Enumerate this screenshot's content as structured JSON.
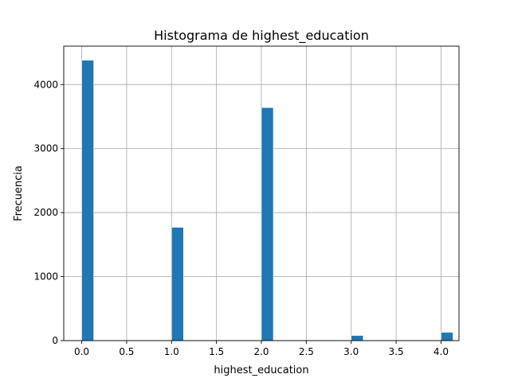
{
  "chart_data": {
    "type": "bar",
    "title": "Histograma de highest_education",
    "xlabel": "highest_education",
    "ylabel": "Frecuencia",
    "xlim": [
      -0.2,
      4.2
    ],
    "ylim": [
      0,
      4600
    ],
    "bin_width": 0.1333,
    "grid": true,
    "x_ticks": [
      0.0,
      0.5,
      1.0,
      1.5,
      2.0,
      2.5,
      3.0,
      3.5,
      4.0
    ],
    "x_tick_labels": [
      "0.0",
      "0.5",
      "1.0",
      "1.5",
      "2.0",
      "2.5",
      "3.0",
      "3.5",
      "4.0"
    ],
    "y_ticks": [
      0,
      1000,
      2000,
      3000,
      4000
    ],
    "y_tick_labels": [
      "0",
      "1000",
      "2000",
      "3000",
      "4000"
    ],
    "bins": [
      {
        "x": 0.0,
        "value": 4380
      },
      {
        "x": 1.0,
        "value": 1770
      },
      {
        "x": 2.0,
        "value": 3640
      },
      {
        "x": 3.0,
        "value": 80
      },
      {
        "x": 4.0,
        "value": 130
      }
    ],
    "color": "#1f77b4"
  }
}
